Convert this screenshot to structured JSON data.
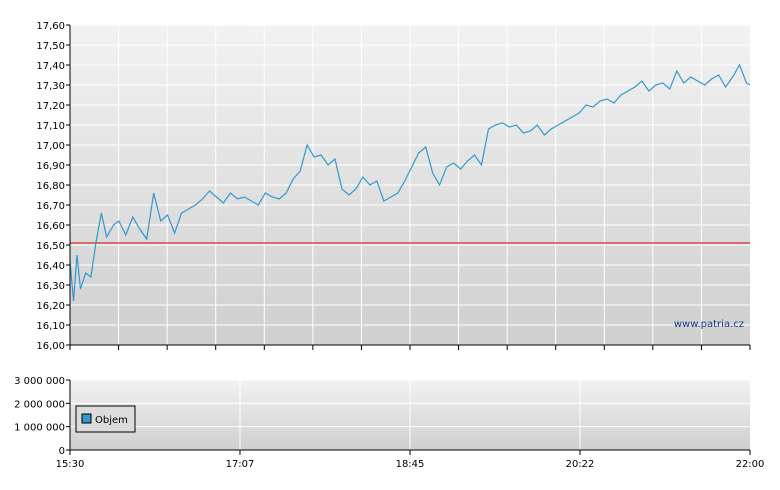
{
  "chart_data": [
    {
      "type": "line",
      "title": "",
      "xlabel": "",
      "ylabel": "",
      "ylim": [
        16.0,
        17.6
      ],
      "y_ticks": [
        "17,60",
        "17,50",
        "17,40",
        "17,30",
        "17,20",
        "17,10",
        "17,00",
        "16,90",
        "16,80",
        "16,70",
        "16,60",
        "16,50",
        "16,40",
        "16,30",
        "16,20",
        "16,10",
        "16,00"
      ],
      "y_tick_values": [
        17.6,
        17.5,
        17.4,
        17.3,
        17.2,
        17.1,
        17.0,
        16.9,
        16.8,
        16.7,
        16.6,
        16.5,
        16.4,
        16.3,
        16.2,
        16.1,
        16.0
      ],
      "reference_line": {
        "value": 16.51,
        "color": "#cc0000"
      },
      "series": [
        {
          "color": "#3399cc",
          "x": [
            "15:30",
            "15:32",
            "15:34",
            "15:36",
            "15:39",
            "15:42",
            "15:45",
            "15:48",
            "15:51",
            "15:55",
            "15:58",
            "16:02",
            "16:06",
            "16:10",
            "16:14",
            "16:18",
            "16:22",
            "16:26",
            "16:30",
            "16:34",
            "16:38",
            "16:42",
            "16:46",
            "16:50",
            "16:54",
            "16:58",
            "17:02",
            "17:06",
            "17:10",
            "17:14",
            "17:18",
            "17:22",
            "17:26",
            "17:30",
            "17:34",
            "17:38",
            "17:42",
            "17:46",
            "17:50",
            "17:54",
            "17:58",
            "18:02",
            "18:06",
            "18:10",
            "18:14",
            "18:18",
            "18:22",
            "18:26",
            "18:30",
            "18:34",
            "18:38",
            "18:42",
            "18:46",
            "18:50",
            "18:54",
            "18:58",
            "19:02",
            "19:06",
            "19:10",
            "19:14",
            "19:18",
            "19:22",
            "19:26",
            "19:30",
            "19:34",
            "19:38",
            "19:42",
            "19:46",
            "19:50",
            "19:54",
            "19:58",
            "20:02",
            "20:06",
            "20:10",
            "20:14",
            "20:18",
            "20:22",
            "20:26",
            "20:30",
            "20:34",
            "20:38",
            "20:42",
            "20:46",
            "20:50",
            "20:54",
            "20:58",
            "21:02",
            "21:06",
            "21:10",
            "21:14",
            "21:18",
            "21:22",
            "21:26",
            "21:30",
            "21:34",
            "21:38",
            "21:42",
            "21:46",
            "21:50",
            "21:54",
            "21:58",
            "22:00"
          ],
          "values": [
            16.42,
            16.22,
            16.45,
            16.28,
            16.36,
            16.34,
            16.52,
            16.66,
            16.54,
            16.6,
            16.62,
            16.55,
            16.64,
            16.58,
            16.53,
            16.76,
            16.62,
            16.65,
            16.56,
            16.66,
            16.68,
            16.7,
            16.73,
            16.77,
            16.74,
            16.71,
            16.76,
            16.73,
            16.74,
            16.72,
            16.7,
            16.76,
            16.74,
            16.73,
            16.76,
            16.83,
            16.87,
            17.0,
            16.94,
            16.95,
            16.9,
            16.93,
            16.78,
            16.75,
            16.78,
            16.84,
            16.8,
            16.82,
            16.72,
            16.74,
            16.76,
            16.82,
            16.89,
            16.96,
            16.99,
            16.86,
            16.8,
            16.89,
            16.91,
            16.88,
            16.92,
            16.95,
            16.9,
            17.08,
            17.1,
            17.11,
            17.09,
            17.1,
            17.06,
            17.07,
            17.1,
            17.05,
            17.08,
            17.1,
            17.12,
            17.14,
            17.16,
            17.2,
            17.19,
            17.22,
            17.23,
            17.21,
            17.25,
            17.27,
            17.29,
            17.32,
            17.27,
            17.3,
            17.31,
            17.28,
            17.37,
            17.31,
            17.34,
            17.32,
            17.3,
            17.33,
            17.35,
            17.29,
            17.34,
            17.4,
            17.31,
            17.3
          ]
        }
      ]
    },
    {
      "type": "bar",
      "ylim": [
        0,
        3000000
      ],
      "y_ticks": [
        "3 000 000",
        "2 000 000",
        "1 000 000",
        "0"
      ],
      "y_tick_values": [
        3000000,
        2000000,
        1000000,
        0
      ],
      "x_ticks": [
        "15:30",
        "17:07",
        "18:45",
        "20:22",
        "22:00"
      ],
      "legend": {
        "label": "Objem",
        "color": "#3399cc",
        "position": "left"
      },
      "series": [
        {
          "name": "Objem",
          "values": []
        }
      ]
    }
  ],
  "watermark": "www.patria.cz"
}
